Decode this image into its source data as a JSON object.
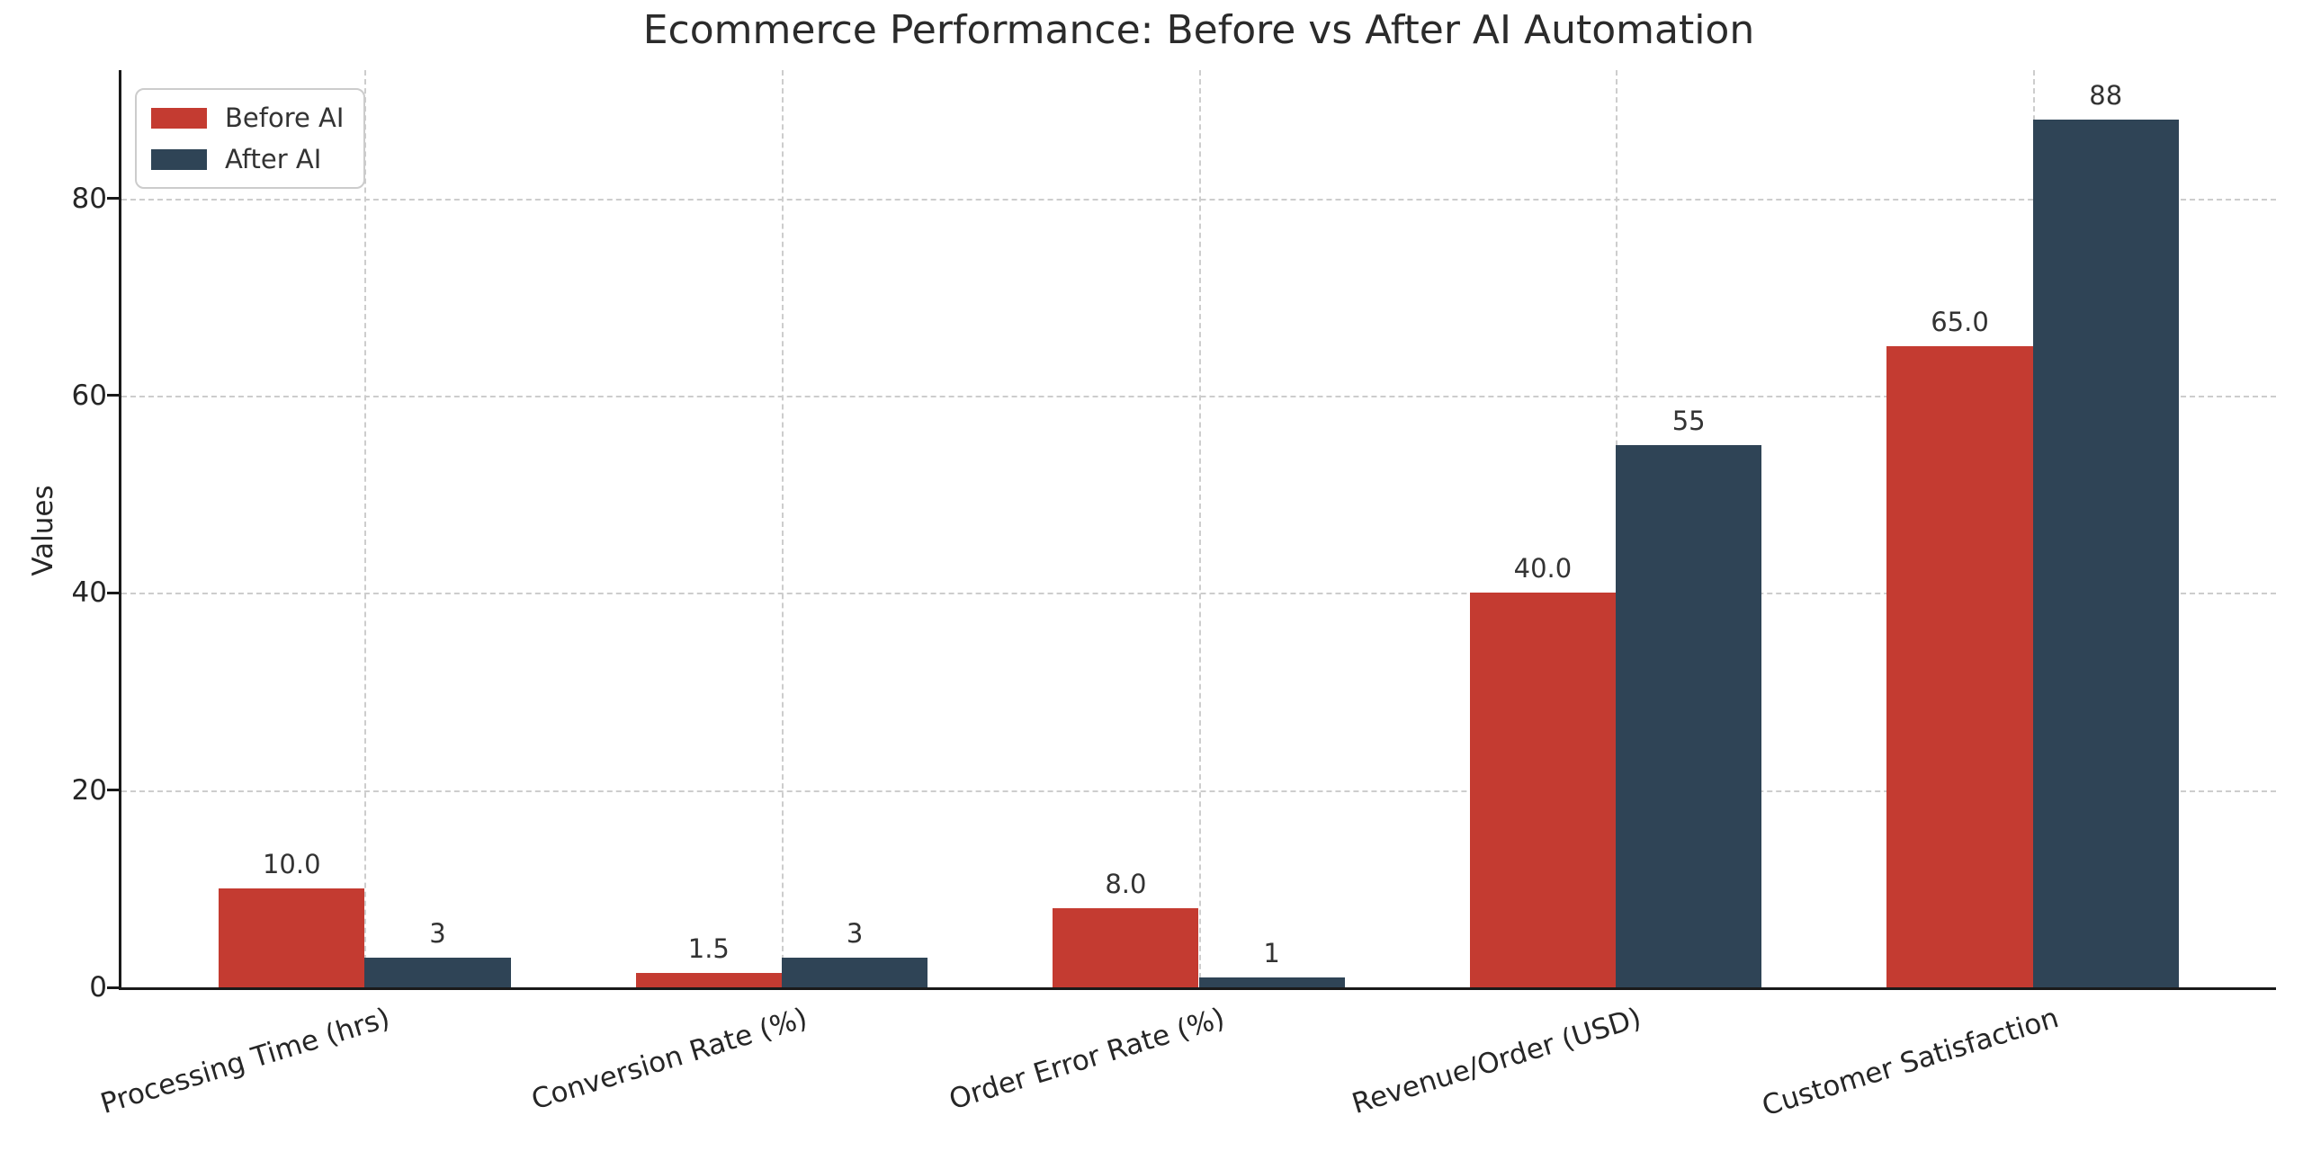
{
  "chart_data": {
    "type": "bar",
    "title": "Ecommerce Performance: Before vs After AI Automation",
    "xlabel": "",
    "ylabel": "Values",
    "categories": [
      "Processing Time (hrs)",
      "Conversion Rate (%)",
      "Order Error Rate (%)",
      "Revenue/Order (USD)",
      "Customer Satisfaction"
    ],
    "series": [
      {
        "name": "Before AI",
        "color": "#c43b31",
        "values": [
          10.0,
          1.5,
          8.0,
          40.0,
          65.0
        ],
        "value_labels": [
          "10.0",
          "1.5",
          "8.0",
          "40.0",
          "65.0"
        ]
      },
      {
        "name": "After AI",
        "color": "#2f4456",
        "values": [
          3,
          3,
          1,
          55,
          88
        ],
        "value_labels": [
          "3",
          "3",
          "1",
          "55",
          "88"
        ]
      }
    ],
    "yticks": [
      0,
      20,
      40,
      60,
      80
    ],
    "ylim": [
      0,
      93
    ],
    "grid": "dashed, both axes, light gray, behind bars",
    "legend_position": "upper left",
    "bar_value_labels": true,
    "xtick_rotation_deg": 17,
    "spines": "left and bottom only",
    "background_color": "#ffffff",
    "text_color": "#262626"
  }
}
